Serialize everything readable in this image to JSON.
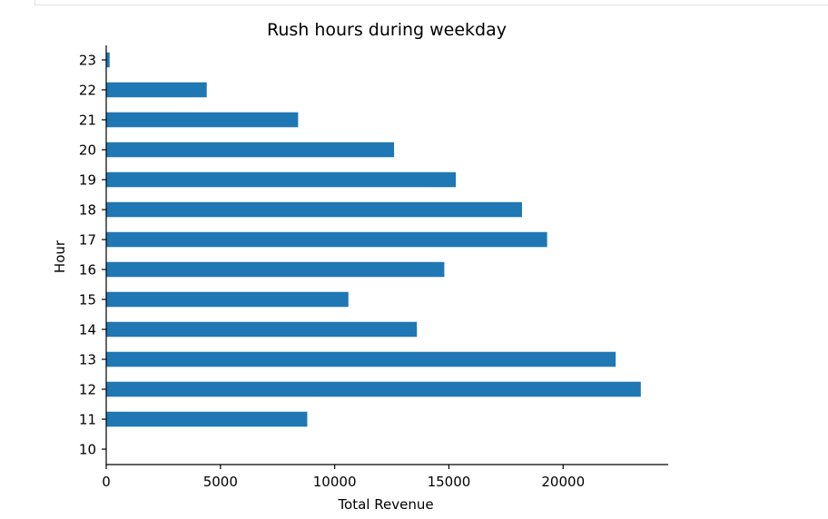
{
  "chart_data": {
    "type": "bar",
    "orientation": "horizontal",
    "title": "Rush hours during weekday",
    "xlabel": "Total Revenue",
    "ylabel": "Hour",
    "categories": [
      "10",
      "11",
      "12",
      "13",
      "14",
      "15",
      "16",
      "17",
      "18",
      "19",
      "20",
      "21",
      "22",
      "23"
    ],
    "values": [
      0,
      8800,
      23400,
      22300,
      13600,
      10600,
      14800,
      19300,
      18200,
      15300,
      12600,
      8400,
      4400,
      150
    ],
    "xlim": [
      0,
      24600
    ],
    "xticks": [
      0,
      5000,
      10000,
      15000,
      20000
    ],
    "xtick_labels": [
      "0",
      "5000",
      "10000",
      "15000",
      "20000"
    ],
    "bar_color": "#1f77b4",
    "grid": false,
    "legend": "none"
  }
}
